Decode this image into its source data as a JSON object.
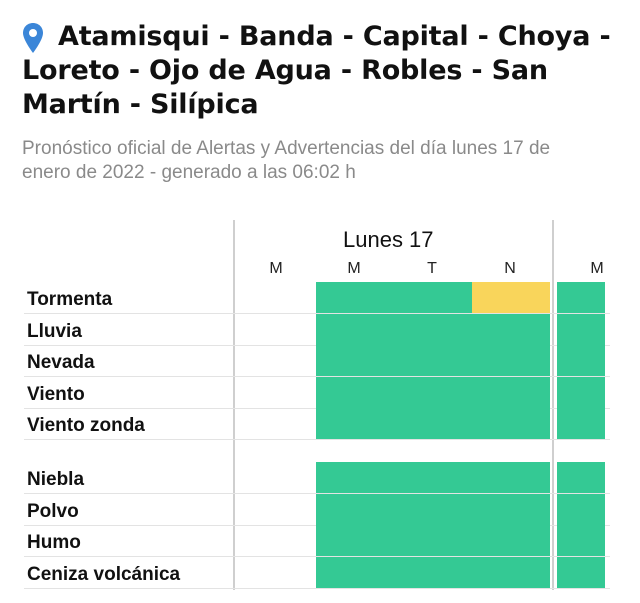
{
  "header": {
    "location_icon": "map-pin-icon",
    "title": "Atamisqui - Banda - Capital - Choya - Loreto - Ojo de Agua - Robles - San Martín - Silípica",
    "subtitle": "Pronóstico oficial de Alertas y Advertencias del día lunes 17 de enero de 2022 - generado a las 06:02 h"
  },
  "schedule": {
    "day_label": "Lunes 17",
    "periods": [
      "M",
      "M",
      "T",
      "N",
      "M"
    ],
    "colors": {
      "green": "#34c994",
      "yellow": "#f9d55b"
    },
    "group1": [
      {
        "label": "Tormenta",
        "levels": [
          "none",
          "green",
          "green",
          "yellow",
          "green"
        ]
      },
      {
        "label": "Lluvia",
        "levels": [
          "none",
          "green",
          "green",
          "green",
          "green"
        ]
      },
      {
        "label": "Nevada",
        "levels": [
          "none",
          "green",
          "green",
          "green",
          "green"
        ]
      },
      {
        "label": "Viento",
        "levels": [
          "none",
          "green",
          "green",
          "green",
          "green"
        ]
      },
      {
        "label": "Viento zonda",
        "levels": [
          "none",
          "green",
          "green",
          "green",
          "green"
        ]
      }
    ],
    "group2": [
      {
        "label": "Niebla",
        "levels": [
          "none",
          "green",
          "green",
          "green",
          "green"
        ]
      },
      {
        "label": "Polvo",
        "levels": [
          "none",
          "green",
          "green",
          "green",
          "green"
        ]
      },
      {
        "label": "Humo",
        "levels": [
          "none",
          "green",
          "green",
          "green",
          "green"
        ]
      },
      {
        "label": "Ceniza volcánica",
        "levels": [
          "none",
          "green",
          "green",
          "green",
          "green"
        ]
      }
    ]
  }
}
